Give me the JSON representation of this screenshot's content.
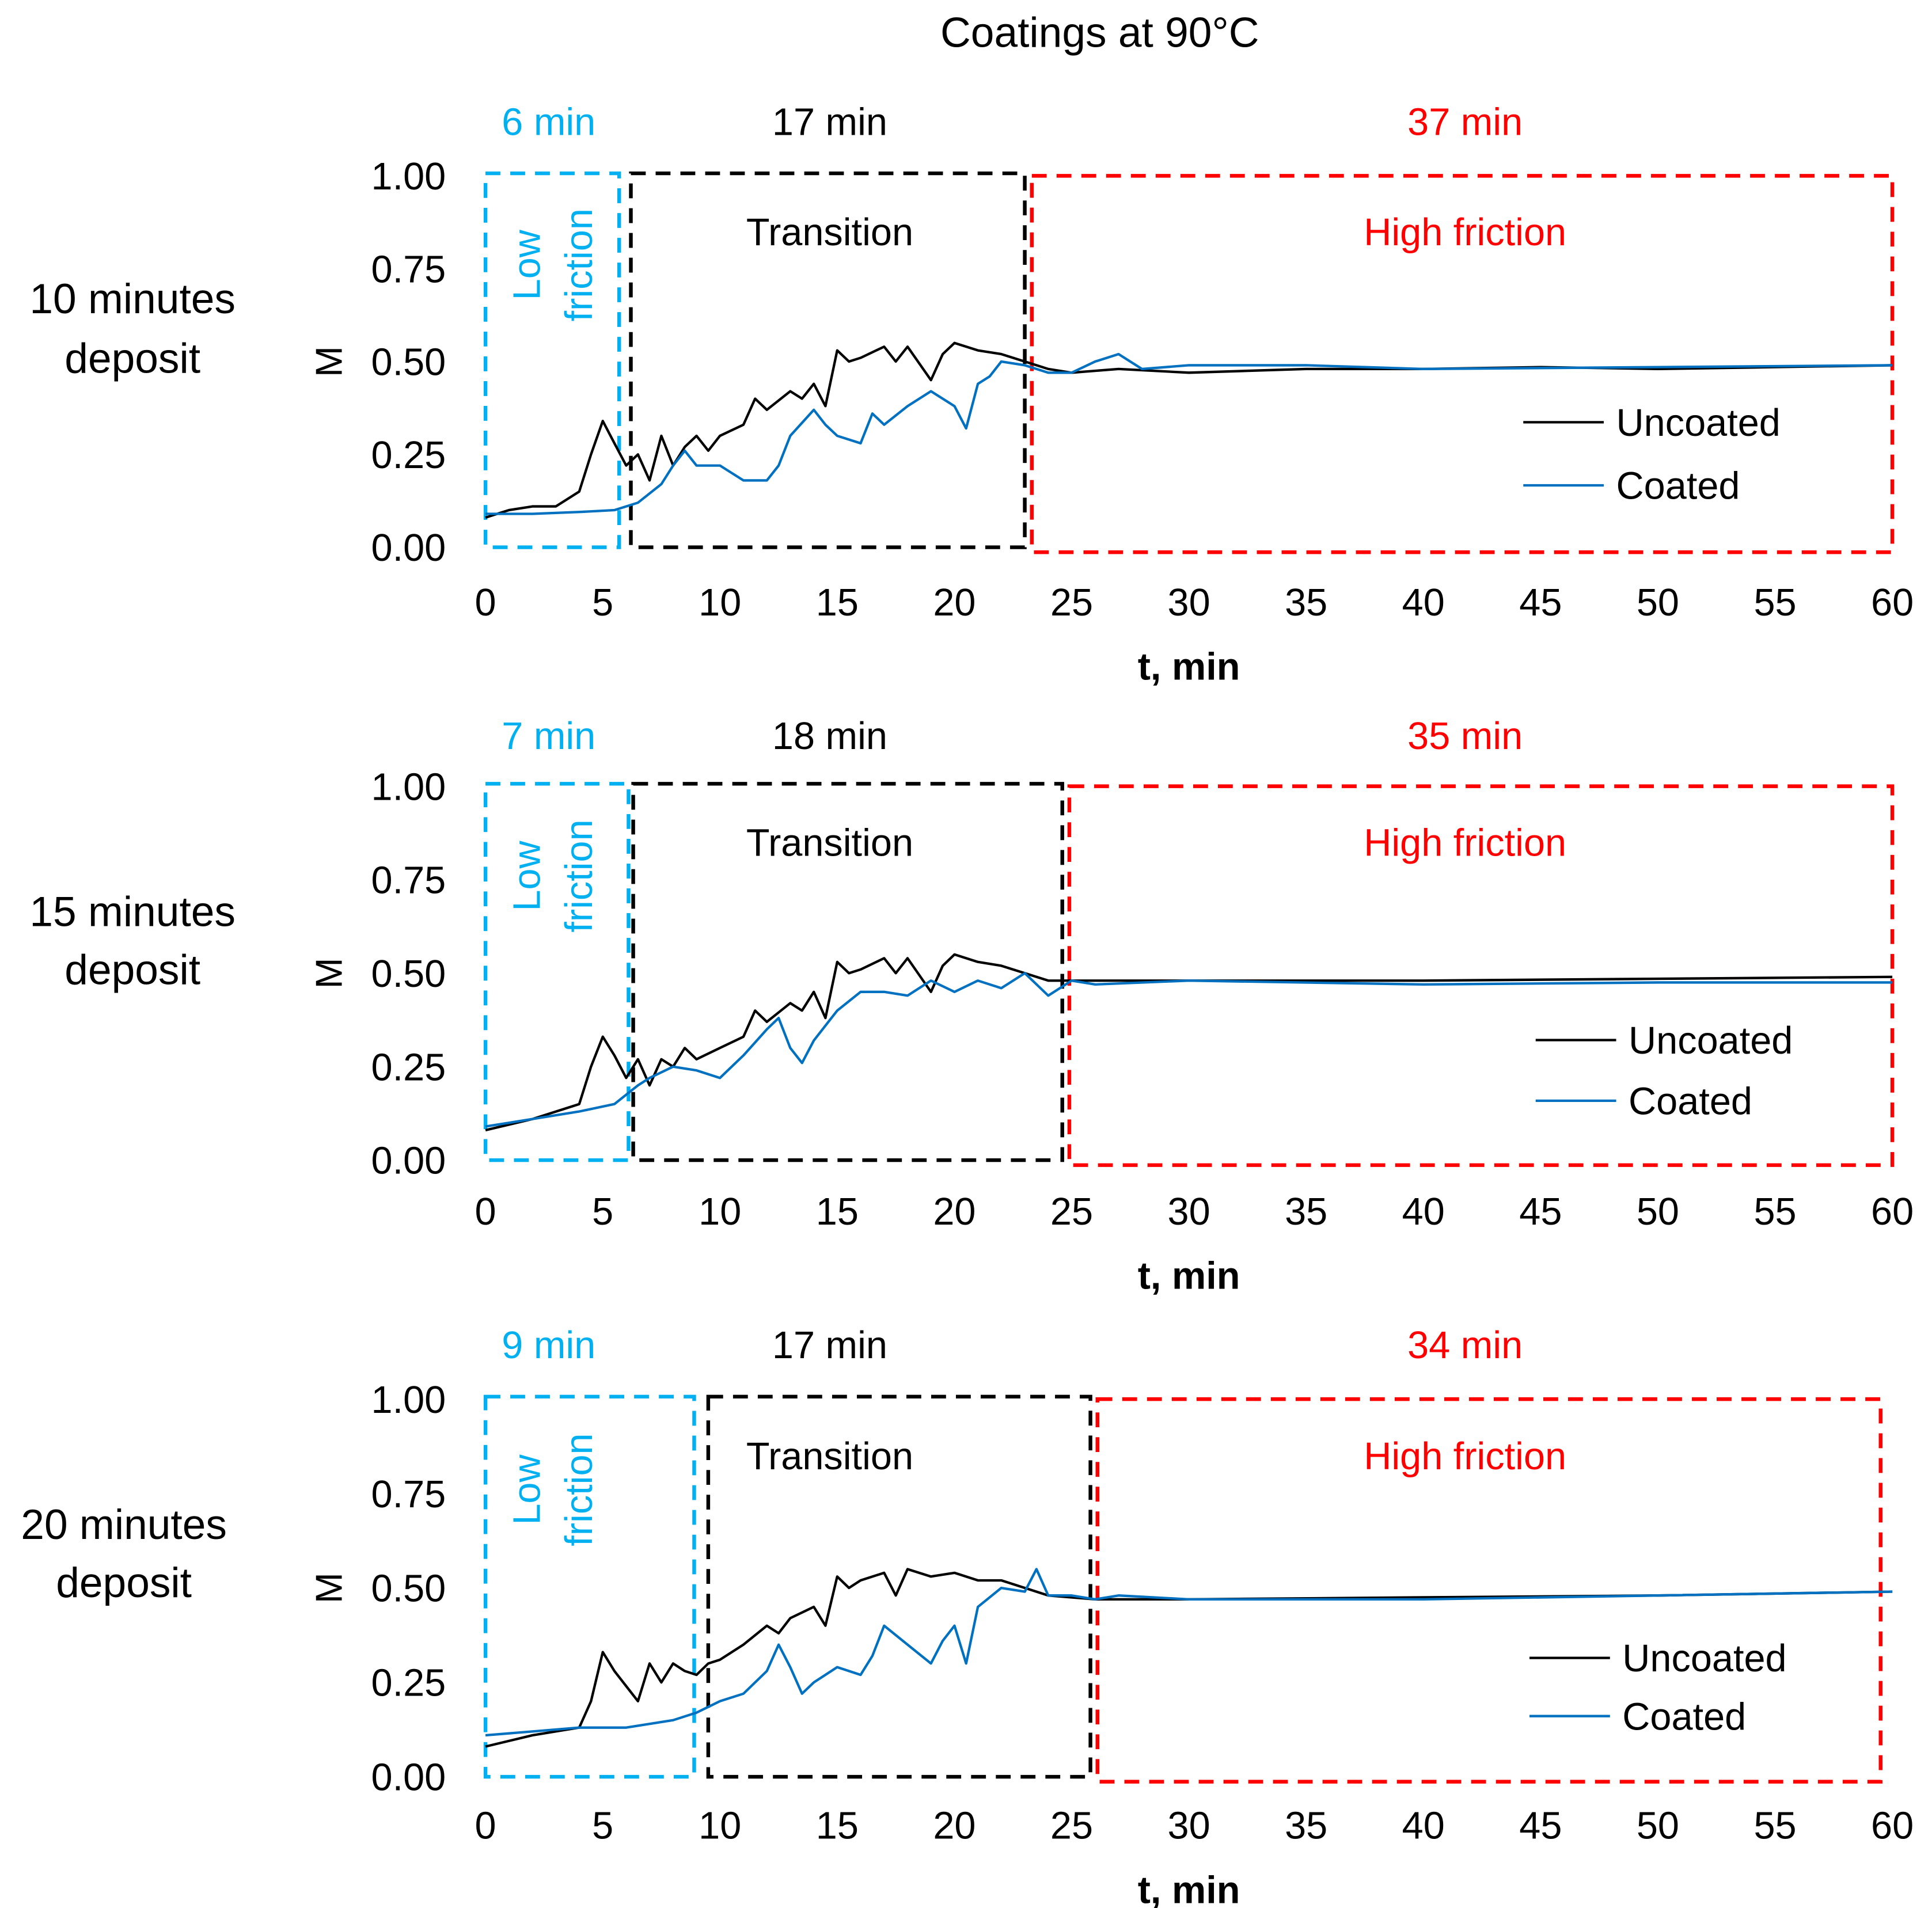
{
  "title": "Coatings at 90°C",
  "colors": {
    "uncoated": "#000000",
    "coated": "#0070C0",
    "low": "#00B0F0",
    "transition": "#000000",
    "high": "#FF0000"
  },
  "chart_data": [
    {
      "type": "line",
      "row_label": [
        "10 minutes",
        "deposit"
      ],
      "xlabel": "t, min",
      "ylabel": "M",
      "xlim": [
        0,
        60
      ],
      "ylim": [
        0,
        1
      ],
      "xticks": [
        "0",
        "5",
        "10",
        "15",
        "20",
        "25",
        "30",
        "35",
        "40",
        "45",
        "50",
        "55",
        "60"
      ],
      "yticks": [
        "0.00",
        "0.25",
        "0.50",
        "0.75",
        "1.00"
      ],
      "regions": [
        {
          "label": "Low friction",
          "label_lines": [
            "Low",
            "friction"
          ],
          "duration": "6 min",
          "range": [
            0,
            5.7
          ],
          "color": "#00B0F0"
        },
        {
          "label": "Transition",
          "duration": "17 min",
          "range": [
            6.2,
            23
          ],
          "color": "#000000"
        },
        {
          "label": "High friction",
          "duration": "37 min",
          "range": [
            23.3,
            60
          ],
          "color": "#FF0000"
        }
      ],
      "series": [
        {
          "name": "Uncoated",
          "color": "#000000",
          "points": [
            [
              0,
              0.08
            ],
            [
              1,
              0.1
            ],
            [
              2,
              0.11
            ],
            [
              3,
              0.11
            ],
            [
              4,
              0.15
            ],
            [
              4.5,
              0.25
            ],
            [
              5,
              0.34
            ],
            [
              5.5,
              0.28
            ],
            [
              6,
              0.22
            ],
            [
              6.5,
              0.25
            ],
            [
              7,
              0.18
            ],
            [
              7.5,
              0.3
            ],
            [
              8,
              0.22
            ],
            [
              8.5,
              0.27
            ],
            [
              9,
              0.3
            ],
            [
              9.5,
              0.26
            ],
            [
              10,
              0.3
            ],
            [
              11,
              0.33
            ],
            [
              11.5,
              0.4
            ],
            [
              12,
              0.37
            ],
            [
              13,
              0.42
            ],
            [
              13.5,
              0.4
            ],
            [
              14,
              0.44
            ],
            [
              14.5,
              0.38
            ],
            [
              15,
              0.53
            ],
            [
              15.5,
              0.5
            ],
            [
              16,
              0.51
            ],
            [
              17,
              0.54
            ],
            [
              17.5,
              0.5
            ],
            [
              18,
              0.54
            ],
            [
              19,
              0.45
            ],
            [
              19.5,
              0.52
            ],
            [
              20,
              0.55
            ],
            [
              21,
              0.53
            ],
            [
              22,
              0.52
            ],
            [
              23,
              0.5
            ],
            [
              24,
              0.48
            ],
            [
              25,
              0.47
            ],
            [
              27,
              0.48
            ],
            [
              30,
              0.47
            ],
            [
              35,
              0.48
            ],
            [
              40,
              0.48
            ],
            [
              45,
              0.485
            ],
            [
              50,
              0.48
            ],
            [
              55,
              0.485
            ],
            [
              60,
              0.49
            ]
          ]
        },
        {
          "name": "Coated",
          "color": "#0070C0",
          "points": [
            [
              0,
              0.09
            ],
            [
              2,
              0.09
            ],
            [
              4,
              0.095
            ],
            [
              5.5,
              0.1
            ],
            [
              6.5,
              0.12
            ],
            [
              7.5,
              0.17
            ],
            [
              8,
              0.22
            ],
            [
              8.5,
              0.26
            ],
            [
              9,
              0.22
            ],
            [
              10,
              0.22
            ],
            [
              11,
              0.18
            ],
            [
              12,
              0.18
            ],
            [
              12.5,
              0.22
            ],
            [
              13,
              0.3
            ],
            [
              14,
              0.37
            ],
            [
              14.5,
              0.33
            ],
            [
              15,
              0.3
            ],
            [
              16,
              0.28
            ],
            [
              16.5,
              0.36
            ],
            [
              17,
              0.33
            ],
            [
              18,
              0.38
            ],
            [
              19,
              0.42
            ],
            [
              20,
              0.38
            ],
            [
              20.5,
              0.32
            ],
            [
              21,
              0.44
            ],
            [
              21.5,
              0.46
            ],
            [
              22,
              0.5
            ],
            [
              23,
              0.49
            ],
            [
              24,
              0.47
            ],
            [
              25,
              0.47
            ],
            [
              26,
              0.5
            ],
            [
              27,
              0.52
            ],
            [
              28,
              0.48
            ],
            [
              30,
              0.49
            ],
            [
              35,
              0.49
            ],
            [
              40,
              0.48
            ],
            [
              50,
              0.485
            ],
            [
              60,
              0.49
            ]
          ]
        }
      ]
    },
    {
      "type": "line",
      "row_label": [
        "15 minutes",
        "deposit"
      ],
      "xlabel": "t, min",
      "ylabel": "M",
      "xlim": [
        0,
        60
      ],
      "ylim": [
        0,
        1
      ],
      "xticks": [
        "0",
        "5",
        "10",
        "15",
        "20",
        "25",
        "30",
        "35",
        "40",
        "45",
        "50",
        "55",
        "60"
      ],
      "yticks": [
        "0.00",
        "0.25",
        "0.50",
        "0.75",
        "1.00"
      ],
      "regions": [
        {
          "label": "Low friction",
          "label_lines": [
            "Low",
            "friction"
          ],
          "duration": "7 min",
          "range": [
            0,
            6.1
          ],
          "color": "#00B0F0"
        },
        {
          "label": "Transition",
          "duration": "18 min",
          "range": [
            6.3,
            24.6
          ],
          "color": "#000000"
        },
        {
          "label": "High friction",
          "duration": "35 min",
          "range": [
            24.9,
            60
          ],
          "color": "#FF0000"
        }
      ],
      "series": [
        {
          "name": "Uncoated",
          "color": "#000000",
          "points": [
            [
              0,
              0.08
            ],
            [
              2,
              0.11
            ],
            [
              4,
              0.15
            ],
            [
              4.5,
              0.25
            ],
            [
              5,
              0.33
            ],
            [
              5.5,
              0.28
            ],
            [
              6,
              0.22
            ],
            [
              6.5,
              0.27
            ],
            [
              7,
              0.2
            ],
            [
              7.5,
              0.27
            ],
            [
              8,
              0.25
            ],
            [
              8.5,
              0.3
            ],
            [
              9,
              0.27
            ],
            [
              10,
              0.3
            ],
            [
              11,
              0.33
            ],
            [
              11.5,
              0.4
            ],
            [
              12,
              0.37
            ],
            [
              13,
              0.42
            ],
            [
              13.5,
              0.4
            ],
            [
              14,
              0.45
            ],
            [
              14.5,
              0.38
            ],
            [
              15,
              0.53
            ],
            [
              15.5,
              0.5
            ],
            [
              16,
              0.51
            ],
            [
              17,
              0.54
            ],
            [
              17.5,
              0.5
            ],
            [
              18,
              0.54
            ],
            [
              19,
              0.45
            ],
            [
              19.5,
              0.52
            ],
            [
              20,
              0.55
            ],
            [
              21,
              0.53
            ],
            [
              22,
              0.52
            ],
            [
              23,
              0.5
            ],
            [
              24,
              0.48
            ],
            [
              25,
              0.48
            ],
            [
              30,
              0.48
            ],
            [
              40,
              0.48
            ],
            [
              50,
              0.485
            ],
            [
              60,
              0.49
            ]
          ]
        },
        {
          "name": "Coated",
          "color": "#0070C0",
          "points": [
            [
              0,
              0.09
            ],
            [
              2,
              0.11
            ],
            [
              4,
              0.13
            ],
            [
              5.5,
              0.15
            ],
            [
              6.5,
              0.2
            ],
            [
              7,
              0.22
            ],
            [
              8,
              0.25
            ],
            [
              9,
              0.24
            ],
            [
              10,
              0.22
            ],
            [
              11,
              0.28
            ],
            [
              12,
              0.35
            ],
            [
              12.5,
              0.38
            ],
            [
              13,
              0.3
            ],
            [
              13.5,
              0.26
            ],
            [
              14,
              0.32
            ],
            [
              15,
              0.4
            ],
            [
              16,
              0.45
            ],
            [
              17,
              0.45
            ],
            [
              18,
              0.44
            ],
            [
              19,
              0.48
            ],
            [
              20,
              0.45
            ],
            [
              21,
              0.48
            ],
            [
              22,
              0.46
            ],
            [
              23,
              0.5
            ],
            [
              24,
              0.44
            ],
            [
              25,
              0.48
            ],
            [
              26,
              0.47
            ],
            [
              30,
              0.48
            ],
            [
              40,
              0.47
            ],
            [
              50,
              0.475
            ],
            [
              60,
              0.475
            ]
          ]
        }
      ]
    },
    {
      "type": "line",
      "row_label": [
        "20 minutes",
        "deposit"
      ],
      "xlabel": "t, min",
      "ylabel": "M",
      "xlim": [
        0,
        60
      ],
      "ylim": [
        0,
        1
      ],
      "xticks": [
        "0",
        "5",
        "10",
        "15",
        "20",
        "25",
        "30",
        "35",
        "40",
        "45",
        "50",
        "55",
        "60"
      ],
      "yticks": [
        "0.00",
        "0.25",
        "0.50",
        "0.75",
        "1.00"
      ],
      "regions": [
        {
          "label": "Low friction",
          "label_lines": [
            "Low",
            "friction"
          ],
          "duration": "9 min",
          "range": [
            0,
            8.9
          ],
          "color": "#00B0F0"
        },
        {
          "label": "Transition",
          "duration": "17 min",
          "range": [
            9.5,
            25.8
          ],
          "color": "#000000"
        },
        {
          "label": "High friction",
          "duration": "34 min",
          "range": [
            26.1,
            59.5
          ],
          "color": "#FF0000"
        }
      ],
      "series": [
        {
          "name": "Uncoated",
          "color": "#000000",
          "points": [
            [
              0,
              0.08
            ],
            [
              2,
              0.11
            ],
            [
              4,
              0.13
            ],
            [
              4.5,
              0.2
            ],
            [
              5,
              0.33
            ],
            [
              5.5,
              0.28
            ],
            [
              6,
              0.24
            ],
            [
              6.5,
              0.2
            ],
            [
              7,
              0.3
            ],
            [
              7.5,
              0.25
            ],
            [
              8,
              0.3
            ],
            [
              8.5,
              0.28
            ],
            [
              9,
              0.27
            ],
            [
              9.5,
              0.3
            ],
            [
              10,
              0.31
            ],
            [
              11,
              0.35
            ],
            [
              12,
              0.4
            ],
            [
              12.5,
              0.38
            ],
            [
              13,
              0.42
            ],
            [
              14,
              0.45
            ],
            [
              14.5,
              0.4
            ],
            [
              15,
              0.53
            ],
            [
              15.5,
              0.5
            ],
            [
              16,
              0.52
            ],
            [
              17,
              0.54
            ],
            [
              17.5,
              0.48
            ],
            [
              18,
              0.55
            ],
            [
              19,
              0.53
            ],
            [
              20,
              0.54
            ],
            [
              21,
              0.52
            ],
            [
              22,
              0.52
            ],
            [
              23,
              0.5
            ],
            [
              24,
              0.48
            ],
            [
              26,
              0.47
            ],
            [
              30,
              0.47
            ],
            [
              40,
              0.475
            ],
            [
              50,
              0.48
            ],
            [
              60,
              0.49
            ]
          ]
        },
        {
          "name": "Coated",
          "color": "#0070C0",
          "points": [
            [
              0,
              0.11
            ],
            [
              2,
              0.12
            ],
            [
              4,
              0.13
            ],
            [
              6,
              0.13
            ],
            [
              8,
              0.15
            ],
            [
              9,
              0.17
            ],
            [
              10,
              0.2
            ],
            [
              11,
              0.22
            ],
            [
              12,
              0.28
            ],
            [
              12.5,
              0.35
            ],
            [
              13,
              0.29
            ],
            [
              13.5,
              0.22
            ],
            [
              14,
              0.25
            ],
            [
              15,
              0.29
            ],
            [
              16,
              0.27
            ],
            [
              16.5,
              0.32
            ],
            [
              17,
              0.4
            ],
            [
              18,
              0.35
            ],
            [
              19,
              0.3
            ],
            [
              19.5,
              0.36
            ],
            [
              20,
              0.4
            ],
            [
              20.5,
              0.3
            ],
            [
              21,
              0.45
            ],
            [
              22,
              0.5
            ],
            [
              23,
              0.49
            ],
            [
              23.5,
              0.55
            ],
            [
              24,
              0.48
            ],
            [
              25,
              0.48
            ],
            [
              26,
              0.47
            ],
            [
              27,
              0.48
            ],
            [
              30,
              0.47
            ],
            [
              40,
              0.47
            ],
            [
              50,
              0.48
            ],
            [
              60,
              0.49
            ]
          ]
        }
      ]
    }
  ]
}
